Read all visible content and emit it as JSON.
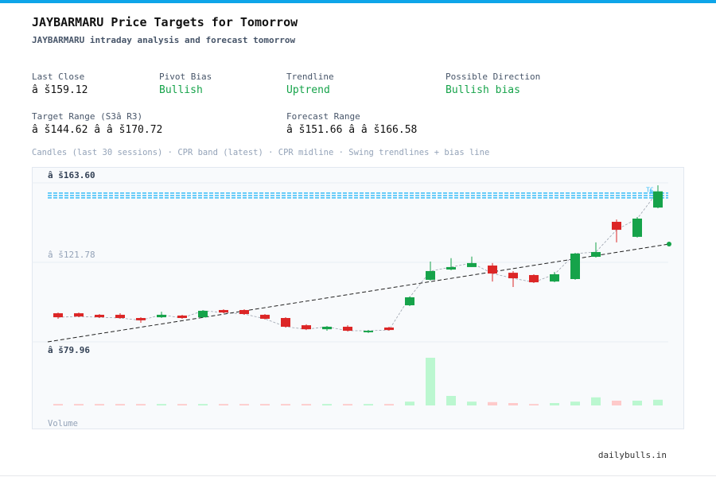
{
  "header": {
    "title": "JAYBARMARU Price Targets for Tomorrow",
    "subtitle": "JAYBARMARU intraday analysis and forecast tomorrow"
  },
  "stats": [
    {
      "label": "Last Close",
      "value": "â š159.12"
    },
    {
      "label": "Pivot Bias",
      "value": "Bullish"
    },
    {
      "label": "Trendline",
      "value": "Uptrend"
    },
    {
      "label": "Possible Direction",
      "value": "Bullish bias"
    },
    {
      "label": "Target Range (S3â  R3)",
      "value": "â š144.62 â   â š170.72"
    },
    {
      "label": "Forecast Range",
      "value": "â š151.66 â   â š166.58"
    }
  ],
  "caption": "Candles (last 30 sessions) · CPR band (latest) · CPR midline · Swing trendlines + bias line",
  "chart_data": {
    "type": "candlestick",
    "open": [
      95.0,
      95.0,
      94.2,
      94.2,
      92.5,
      92.9,
      93.8,
      92.9,
      96.7,
      96.7,
      94.2,
      92.5,
      88.7,
      86.6,
      87.9,
      85.0,
      87.5,
      99.2,
      112.6,
      118.0,
      119.3,
      120.1,
      116.3,
      115.1,
      111.7,
      113.0,
      124.7,
      143.1,
      135.2,
      150.6
    ],
    "high": [
      95.4,
      95.4,
      94.6,
      95.0,
      92.9,
      95.8,
      94.2,
      96.7,
      97.1,
      97.1,
      94.6,
      92.9,
      89.2,
      88.3,
      88.7,
      86.2,
      87.9,
      103.8,
      122.2,
      124.0,
      124.8,
      121.4,
      117.2,
      115.5,
      116.7,
      126.8,
      132.3,
      144.3,
      145.6,
      162.3
    ],
    "low": [
      92.1,
      92.9,
      92.5,
      92.1,
      90.0,
      92.5,
      92.1,
      92.5,
      95.0,
      94.2,
      91.7,
      87.5,
      86.2,
      85.8,
      85.4,
      84.6,
      85.8,
      98.8,
      112.2,
      117.6,
      119.3,
      111.7,
      108.8,
      110.9,
      111.3,
      112.6,
      124.3,
      132.3,
      134.8,
      150.2
    ],
    "close": [
      92.9,
      93.3,
      92.9,
      92.5,
      91.3,
      94.2,
      92.5,
      96.3,
      95.4,
      94.6,
      92.1,
      87.9,
      86.6,
      87.9,
      85.8,
      85.8,
      86.2,
      103.4,
      117.2,
      119.3,
      121.4,
      115.9,
      113.4,
      111.3,
      115.5,
      126.4,
      127.2,
      138.9,
      144.8,
      159.12
    ],
    "volume": [
      3,
      3,
      3,
      3,
      3,
      3,
      3,
      3,
      3,
      3,
      3,
      3,
      3,
      3,
      3,
      3,
      3,
      8,
      100,
      20,
      8,
      7,
      5,
      3,
      5,
      8,
      17,
      10,
      10,
      12
    ],
    "volume_lim": [
      0,
      100
    ],
    "volume_label": "Volume",
    "ylim": [
      79.96,
      163.6
    ],
    "yticks": [
      {
        "value": 79.96,
        "label": "â š79.96"
      },
      {
        "value": 121.78,
        "label": "â š121.78"
      },
      {
        "value": 163.6,
        "label": "â š163.60"
      }
    ],
    "cpr": [
      {
        "name": "TC",
        "value": 158.2
      },
      {
        "name": "P",
        "value": 156.9
      },
      {
        "name": "BC",
        "value": 155.7
      }
    ],
    "bias_line": [
      79.96,
      131.4
    ],
    "grid": true
  },
  "footer": "dailybulls.in"
}
